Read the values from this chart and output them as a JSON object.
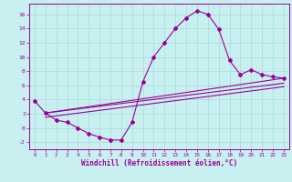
{
  "xlabel": "Windchill (Refroidissement éolien,°C)",
  "bg_color": "#c8f0f0",
  "grid_color": "#a8d8d8",
  "line_color": "#990099",
  "xlim": [
    -0.5,
    23.5
  ],
  "ylim": [
    -3.0,
    17.5
  ],
  "xticks": [
    0,
    1,
    2,
    3,
    4,
    5,
    6,
    7,
    8,
    9,
    10,
    11,
    12,
    13,
    14,
    15,
    16,
    17,
    18,
    19,
    20,
    21,
    22,
    23
  ],
  "yticks": [
    -2,
    0,
    2,
    4,
    6,
    8,
    10,
    12,
    14,
    16
  ],
  "line1_x": [
    0,
    1,
    2,
    3,
    4,
    5,
    6,
    7,
    8,
    9,
    10,
    11,
    12,
    13,
    14,
    15,
    16,
    17,
    18,
    19,
    20,
    21,
    22,
    23
  ],
  "line1_y": [
    3.8,
    2.1,
    1.1,
    0.8,
    0.0,
    -0.8,
    -1.3,
    -1.7,
    -1.7,
    0.8,
    6.5,
    10.0,
    12.0,
    14.0,
    15.5,
    16.5,
    16.0,
    13.9,
    9.5,
    7.5,
    8.2,
    7.5,
    7.2,
    7.0
  ],
  "line2_x": [
    1,
    23
  ],
  "line2_y": [
    2.1,
    7.0
  ],
  "line3_x": [
    1,
    23
  ],
  "line3_y": [
    2.1,
    6.3
  ],
  "line4_x": [
    1,
    23
  ],
  "line4_y": [
    1.5,
    5.8
  ]
}
